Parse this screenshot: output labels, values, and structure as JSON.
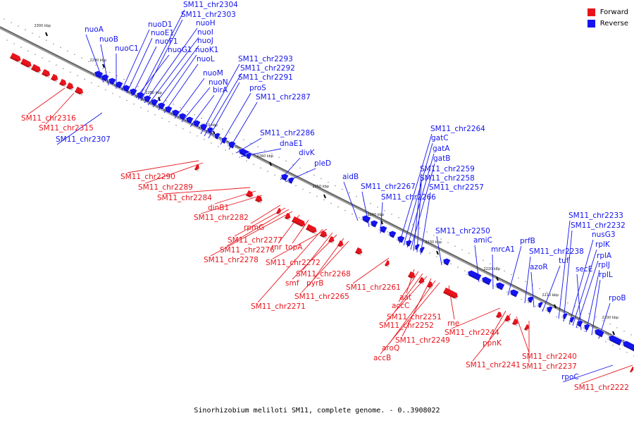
{
  "caption": "Sinorhizobium meliloti SM11, complete genome. - 0..3908022",
  "legend": {
    "forward_label": "Forward",
    "reverse_label": "Reverse",
    "forward_color": "#e8141c",
    "reverse_color": "#1414ee"
  },
  "ticks": [
    "2300 kbp",
    "2290 kbp",
    "2280 kbp",
    "2270 kbp",
    "2260 kbp",
    "2250 kbp",
    "2240 kbp",
    "2230 kbp",
    "2220 kbp",
    "2210 kbp",
    "2200 kbp"
  ],
  "reverse_genes": [
    {
      "name": "nuoA"
    },
    {
      "name": "nuoB"
    },
    {
      "name": "nuoC1"
    },
    {
      "name": "nuoD1"
    },
    {
      "name": "nuoE1"
    },
    {
      "name": "nuoF1"
    },
    {
      "name": "nuoG1"
    },
    {
      "name": "SM11_chr2304"
    },
    {
      "name": "SM11_chr2303"
    },
    {
      "name": "nuoH"
    },
    {
      "name": "nuoI"
    },
    {
      "name": "nuoJ"
    },
    {
      "name": "nuoK1"
    },
    {
      "name": "nuoL"
    },
    {
      "name": "nuoM"
    },
    {
      "name": "nuoN"
    },
    {
      "name": "birA"
    },
    {
      "name": "SM11_chr2293"
    },
    {
      "name": "SM11_chr2292"
    },
    {
      "name": "SM11_chr2291"
    },
    {
      "name": "proS"
    },
    {
      "name": "SM11_chr2287"
    },
    {
      "name": "SM11_chr2307"
    },
    {
      "name": "SM11_chr2286"
    },
    {
      "name": "dnaE1"
    },
    {
      "name": "divK"
    },
    {
      "name": "pleD"
    },
    {
      "name": "aidB"
    },
    {
      "name": "SM11_chr2267"
    },
    {
      "name": "SM11_chr2266"
    },
    {
      "name": "SM11_chr2264"
    },
    {
      "name": "gatC"
    },
    {
      "name": "gatA"
    },
    {
      "name": "gatB"
    },
    {
      "name": "SM11_chr2259"
    },
    {
      "name": "SM11_chr2258"
    },
    {
      "name": "SM11_chr2257"
    },
    {
      "name": "SM11_chr2250"
    },
    {
      "name": "amiC"
    },
    {
      "name": "mrcA1"
    },
    {
      "name": "prfB"
    },
    {
      "name": "SM11_chr2238"
    },
    {
      "name": "azoR"
    },
    {
      "name": "tuf"
    },
    {
      "name": "SM11_chr2233"
    },
    {
      "name": "SM11_chr2232"
    },
    {
      "name": "nusG3"
    },
    {
      "name": "rplK"
    },
    {
      "name": "rplA"
    },
    {
      "name": "secE"
    },
    {
      "name": "rplJ"
    },
    {
      "name": "rplL"
    },
    {
      "name": "rpoB"
    },
    {
      "name": "rpoC"
    }
  ],
  "forward_genes": [
    {
      "name": "SM11_chr2316"
    },
    {
      "name": "SM11_chr2315"
    },
    {
      "name": "SM11_chr2290"
    },
    {
      "name": "SM11_chr2289"
    },
    {
      "name": "SM11_chr2284"
    },
    {
      "name": "dinB1"
    },
    {
      "name": "SM11_chr2282"
    },
    {
      "name": "rpmG"
    },
    {
      "name": "SM11_chr2277"
    },
    {
      "name": "SM11_chr2276"
    },
    {
      "name": "SM11_chr2278"
    },
    {
      "name": "rnr"
    },
    {
      "name": "topA"
    },
    {
      "name": "SM11_chr2272"
    },
    {
      "name": "SM11_chr2268"
    },
    {
      "name": "smf"
    },
    {
      "name": "pyrB"
    },
    {
      "name": "SM11_chr2265"
    },
    {
      "name": "SM11_chr2271"
    },
    {
      "name": "SM11_chr2261"
    },
    {
      "name": "aat"
    },
    {
      "name": "accC"
    },
    {
      "name": "SM11_chr2251"
    },
    {
      "name": "SM11_chr2252"
    },
    {
      "name": "SM11_chr2249"
    },
    {
      "name": "aroQ"
    },
    {
      "name": "accB"
    },
    {
      "name": "rne"
    },
    {
      "name": "SM11_chr2244"
    },
    {
      "name": "ppnK"
    },
    {
      "name": "SM11_chr2241"
    },
    {
      "name": "SM11_chr2240"
    },
    {
      "name": "SM11_chr2237"
    },
    {
      "name": "SM11_chr2222"
    }
  ]
}
